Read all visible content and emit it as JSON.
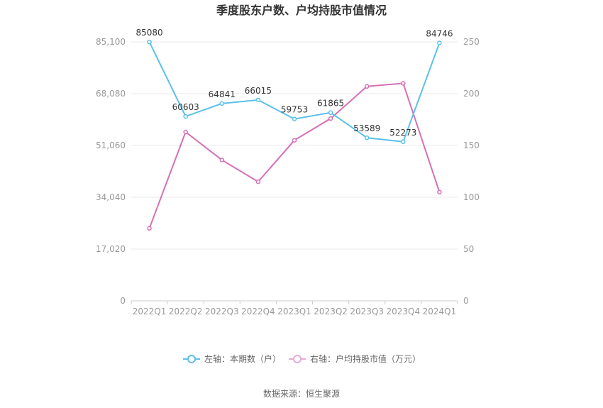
{
  "chart_data": {
    "type": "line",
    "title": "季度股东户数、户均持股市值情况",
    "categories": [
      "2022Q1",
      "2022Q2",
      "2022Q3",
      "2022Q4",
      "2023Q1",
      "2023Q2",
      "2023Q3",
      "2023Q4",
      "2024Q1"
    ],
    "left_axis": {
      "ticks": [
        "0",
        "17,020",
        "34,040",
        "51,060",
        "68,080",
        "85,100"
      ],
      "ylim": [
        0,
        85100
      ]
    },
    "right_axis": {
      "ticks": [
        "0",
        "50",
        "100",
        "150",
        "200",
        "250"
      ],
      "ylim": [
        0,
        250
      ]
    },
    "series": [
      {
        "name": "左轴：本期数（户）",
        "axis": "left",
        "color": "#5bc0eb",
        "values": [
          85080,
          60603,
          64841,
          66015,
          59753,
          61865,
          53589,
          52273,
          84746
        ],
        "labels": [
          "85080",
          "60603",
          "64841",
          "66015",
          "59753",
          "61865",
          "53589",
          "52273",
          "84746"
        ]
      },
      {
        "name": "右轴：户均持股市值（万元）",
        "axis": "right",
        "color": "#d670b5",
        "values": [
          70,
          163,
          136,
          115,
          155,
          176,
          207,
          210,
          105
        ]
      }
    ],
    "grid": true,
    "legend_position": "bottom",
    "source": "数据来源：恒生聚源"
  }
}
